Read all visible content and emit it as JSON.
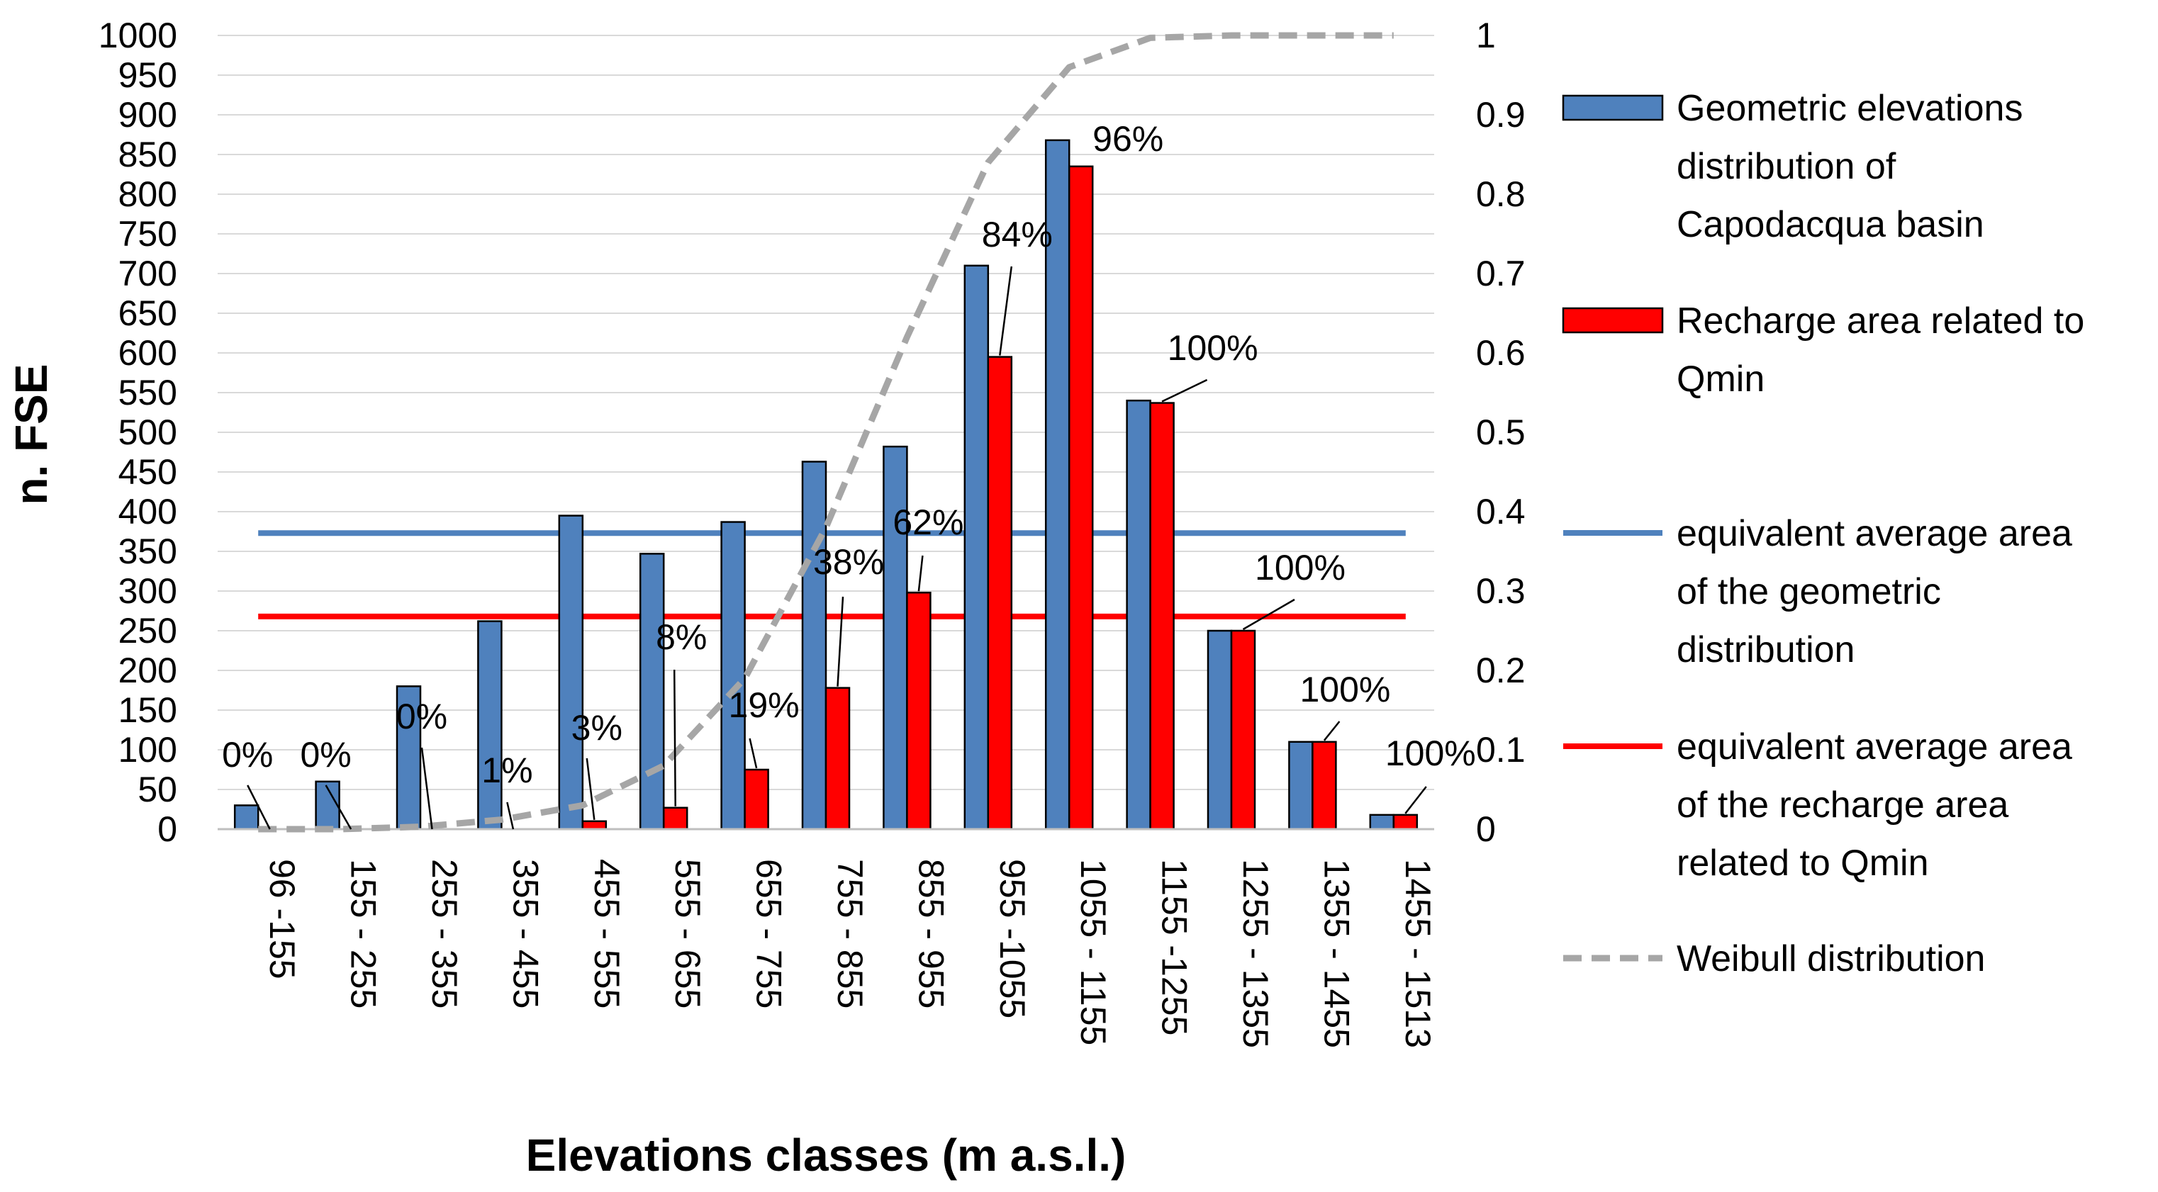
{
  "chart_data": {
    "type": "bar",
    "title": "",
    "xlabel": "Elevations classes (m a.s.l.)",
    "ylabel": "n. FSE",
    "ylim": [
      0,
      1000
    ],
    "y_ticks": [
      0,
      50,
      100,
      150,
      200,
      250,
      300,
      350,
      400,
      450,
      500,
      550,
      600,
      650,
      700,
      750,
      800,
      850,
      900,
      950,
      1000
    ],
    "y2lim": [
      0,
      1
    ],
    "y2_ticks": [
      "0",
      "0.1",
      "0.2",
      "0.3",
      "0.4",
      "0.5",
      "0.6",
      "0.7",
      "0.8",
      "0.9",
      "1"
    ],
    "grid": true,
    "legend_position": "right",
    "categories": [
      "96 -155",
      "155 - 255",
      "255 - 355",
      "355 - 455",
      "455 - 555",
      "555 - 655",
      "655 - 755",
      "755 - 855",
      "855 - 955",
      "955 -1055",
      "1055 - 1155",
      "1155 -1255",
      "1255 - 1355",
      "1355 - 1455",
      "1455 - 1513"
    ],
    "series": [
      {
        "name": "Geometric elevations distribution of Capodacqua basin",
        "legend_lines": [
          "Geometric elevations",
          "distribution of",
          "Capodacqua basin"
        ],
        "type": "bar",
        "color": "#4f81bd",
        "values": [
          30,
          60,
          180,
          262,
          395,
          347,
          387,
          463,
          482,
          710,
          868,
          540,
          250,
          110,
          18
        ]
      },
      {
        "name": "Recharge area related to Qmin",
        "legend_lines": [
          "Recharge area related to",
          "Qmin"
        ],
        "type": "bar",
        "color": "#ff0000",
        "values": [
          0,
          0,
          0,
          0,
          10,
          27,
          75,
          178,
          298,
          595,
          835,
          537,
          250,
          110,
          18
        ],
        "data_labels": [
          "0%",
          "0%",
          "0%",
          "1%",
          "3%",
          "8%",
          "19%",
          "38%",
          "62%",
          "84%",
          "96%",
          "100%",
          "100%",
          "100%",
          "100%"
        ]
      },
      {
        "name": "equivalent average area of the geometric distribution",
        "legend_lines": [
          "equivalent average area",
          "of the geometric",
          "distribution"
        ],
        "type": "hline",
        "color": "#4f81bd",
        "value": 373
      },
      {
        "name": "equivalent average area of the recharge area related to Qmin",
        "legend_lines": [
          "equivalent average area",
          "of the recharge area",
          "related to Qmin"
        ],
        "type": "hline",
        "color": "#ff0000",
        "value": 268
      },
      {
        "name": "Weibull distribution",
        "legend_lines": [
          "Weibull distribution"
        ],
        "type": "line",
        "axis": "secondary",
        "color": "#a6a6a6",
        "dashed": true,
        "values": [
          0,
          0,
          0.003,
          0.012,
          0.03,
          0.08,
          0.19,
          0.38,
          0.62,
          0.84,
          0.96,
          0.997,
          1,
          1,
          1
        ]
      }
    ]
  }
}
